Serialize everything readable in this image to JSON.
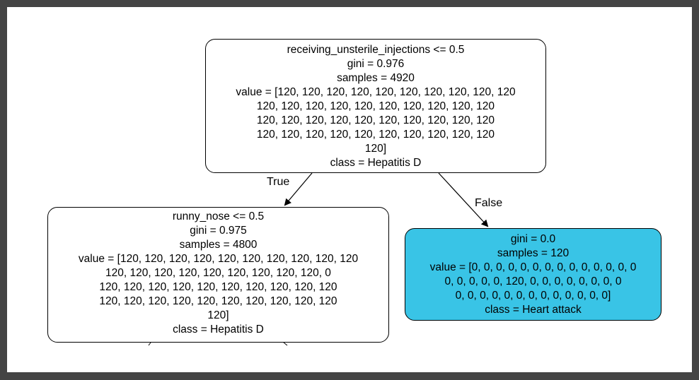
{
  "tree": {
    "root": {
      "lines": [
        "receiving_unsterile_injections <= 0.5",
        "gini = 0.976",
        "samples = 4920",
        "value = [120, 120, 120, 120, 120, 120, 120, 120, 120, 120",
        "120, 120, 120, 120, 120, 120, 120, 120, 120, 120",
        "120, 120, 120, 120, 120, 120, 120, 120, 120, 120",
        "120, 120, 120, 120, 120, 120, 120, 120, 120, 120",
        "120]",
        "class = Hepatitis D"
      ]
    },
    "left": {
      "lines": [
        "runny_nose <= 0.5",
        "gini = 0.975",
        "samples = 4800",
        "value = [120, 120, 120, 120, 120, 120, 120, 120, 120, 120",
        "120, 120, 120, 120, 120, 120, 120, 120, 120, 0",
        "120, 120, 120, 120, 120, 120, 120, 120, 120, 120",
        "120, 120, 120, 120, 120, 120, 120, 120, 120, 120",
        "120]",
        "class = Hepatitis D"
      ]
    },
    "right": {
      "lines": [
        "gini = 0.0",
        "samples = 120",
        "value = [0, 0, 0, 0, 0, 0, 0, 0, 0, 0, 0, 0, 0, 0",
        "0, 0, 0, 0, 0, 120, 0, 0, 0, 0, 0, 0, 0, 0",
        "0, 0, 0, 0, 0, 0, 0, 0, 0, 0, 0, 0, 0]",
        "class = Heart attack"
      ],
      "fill_color": "#39c4e6"
    },
    "edge_labels": {
      "true": "True",
      "false": "False"
    }
  }
}
